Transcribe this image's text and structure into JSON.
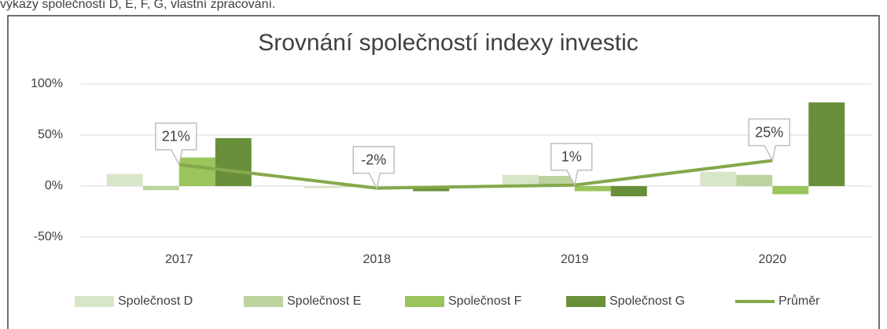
{
  "caption": "výkazy společností D, E, F, G, vlastní zpracování.",
  "chart_data": {
    "type": "bar",
    "title": "Srovnání společností indexy investic",
    "categories": [
      "2017",
      "2018",
      "2019",
      "2020"
    ],
    "series": [
      {
        "name": "Společnost D",
        "color": "#d9e5c9",
        "values": [
          12,
          -2,
          11,
          14
        ]
      },
      {
        "name": "Společnost E",
        "color": "#bcd3a0",
        "values": [
          -4,
          -1,
          10,
          11
        ]
      },
      {
        "name": "Společnost F",
        "color": "#9bc45c",
        "values": [
          28,
          0,
          -5,
          -8
        ]
      },
      {
        "name": "Společnost G",
        "color": "#6a8f3a",
        "values": [
          47,
          -5,
          -10,
          82
        ]
      },
      {
        "name": "Průměr",
        "type": "line",
        "color": "#84a84a",
        "values": [
          21,
          -2,
          1,
          25
        ],
        "value_labels": [
          "21%",
          "-2%",
          "1%",
          "25%"
        ]
      }
    ],
    "ylim": [
      -60,
      105
    ],
    "yticks": [
      {
        "value": -50,
        "label": "-50%"
      },
      {
        "value": 0,
        "label": "0%"
      },
      {
        "value": 50,
        "label": "50%"
      },
      {
        "value": 100,
        "label": "100%"
      }
    ],
    "grid": true,
    "legend": "bottom"
  }
}
